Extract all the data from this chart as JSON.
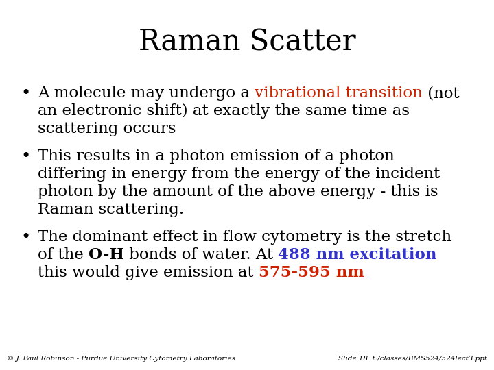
{
  "title": "Raman Scatter",
  "title_fontsize": 30,
  "background_color": "#ffffff",
  "text_color": "#000000",
  "red_color": "#cc2200",
  "blue_color": "#3333cc",
  "body_fontsize": 16.5,
  "footer_fontsize": 7.5,
  "footer_left": "© J. Paul Robinson - Purdue University Cytometry Laboratories",
  "footer_right": "Slide 18  t:/classes/BMS524/524lect3.ppt",
  "bullet1_lines": [
    [
      {
        "text": "A molecule may undergo a ",
        "color": "#000000",
        "bold": false,
        "size": 16.5
      },
      {
        "text": "vibrational transition",
        "color": "#cc2200",
        "bold": false,
        "size": 16.5
      },
      {
        "text": " (not",
        "color": "#000000",
        "bold": false,
        "size": 16.5
      }
    ],
    [
      {
        "text": "an electronic shift) at exactly the same time as",
        "color": "#000000",
        "bold": false,
        "size": 16.5
      }
    ],
    [
      {
        "text": "scattering occurs",
        "color": "#000000",
        "bold": false,
        "size": 16.5
      }
    ]
  ],
  "bullet2_lines": [
    [
      {
        "text": "This results in a photon emission of a photon",
        "color": "#000000",
        "bold": false,
        "size": 16.5
      }
    ],
    [
      {
        "text": "differing in energy from the energy of the incident",
        "color": "#000000",
        "bold": false,
        "size": 16.5
      }
    ],
    [
      {
        "text": "photon by the amount of the above energy - this is",
        "color": "#000000",
        "bold": false,
        "size": 16.5
      }
    ],
    [
      {
        "text": "Raman scattering.",
        "color": "#000000",
        "bold": false,
        "size": 16.5
      }
    ]
  ],
  "bullet3_lines": [
    [
      {
        "text": "The dominant effect in flow cytometry is the stretch",
        "color": "#000000",
        "bold": false,
        "size": 16.5
      }
    ],
    [
      {
        "text": "of the ",
        "color": "#000000",
        "bold": false,
        "size": 16.5
      },
      {
        "text": "O-H",
        "color": "#000000",
        "bold": true,
        "size": 16.5
      },
      {
        "text": " bonds of water. At ",
        "color": "#000000",
        "bold": false,
        "size": 16.5
      },
      {
        "text": "488 nm excitation",
        "color": "#3333cc",
        "bold": true,
        "size": 16.5
      }
    ],
    [
      {
        "text": "this would give emission at ",
        "color": "#000000",
        "bold": false,
        "size": 16.5
      },
      {
        "text": "575-595 nm",
        "color": "#cc2200",
        "bold": true,
        "size": 16.5
      }
    ]
  ]
}
